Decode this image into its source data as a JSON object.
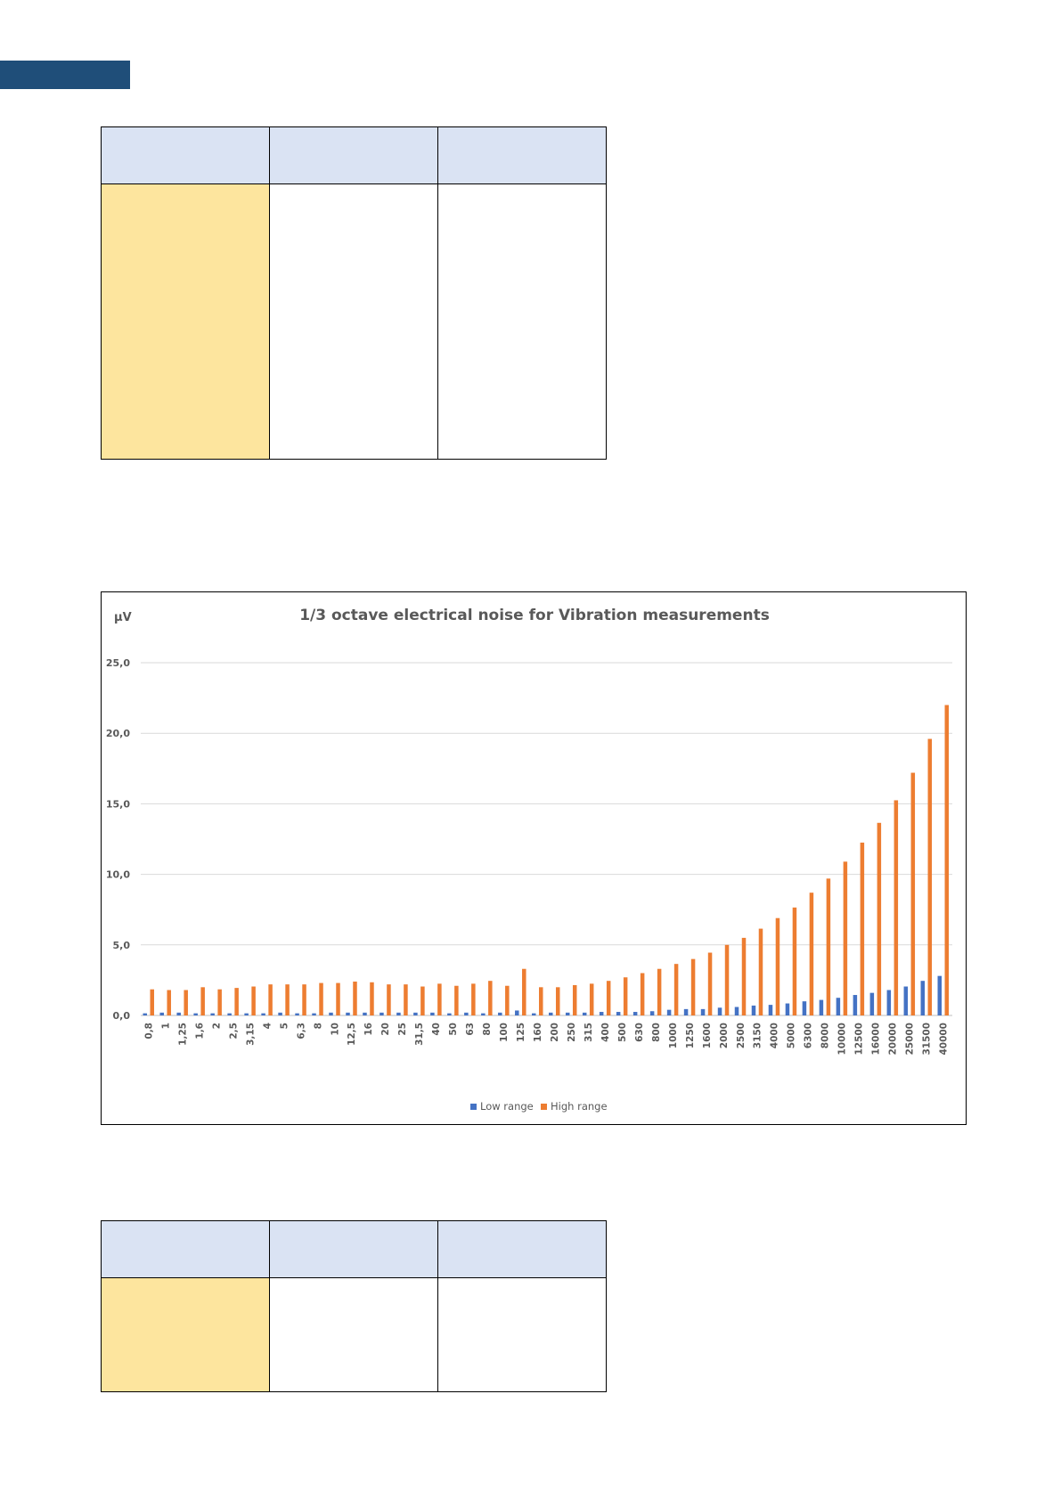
{
  "colors": {
    "header_tab": "#1f4e79",
    "table_header": "#dae3f3",
    "table_key": "#fde59e",
    "low_range": "#4472c4",
    "high_range": "#ed7d31",
    "gridline": "#d9d9d9"
  },
  "chart_data": {
    "type": "bar",
    "title": "1/3 octave electrical noise for Vibration measurements",
    "unit_label": "µV",
    "ylim": [
      0,
      25
    ],
    "y_ticks": [
      "25,0",
      "20,0",
      "15,0",
      "10,0",
      "5,0",
      "0,0"
    ],
    "y_tick_values": [
      25,
      20,
      15,
      10,
      5,
      0
    ],
    "grid": true,
    "legend_position": "bottom",
    "categories": [
      "0,8",
      "1",
      "1,25",
      "1,6",
      "2",
      "2,5",
      "3,15",
      "4",
      "5",
      "6,3",
      "8",
      "10",
      "12,5",
      "16",
      "20",
      "25",
      "31,5",
      "40",
      "50",
      "63",
      "80",
      "100",
      "125",
      "160",
      "200",
      "250",
      "315",
      "400",
      "500",
      "630",
      "800",
      "1000",
      "1250",
      "1600",
      "2000",
      "2500",
      "3150",
      "4000",
      "5000",
      "6300",
      "8000",
      "10000",
      "12500",
      "16000",
      "20000",
      "25000",
      "31500",
      "40000"
    ],
    "series": [
      {
        "name": "Low range",
        "color": "#4472c4",
        "values": [
          0.15,
          0.2,
          0.2,
          0.15,
          0.15,
          0.15,
          0.15,
          0.15,
          0.2,
          0.15,
          0.15,
          0.2,
          0.2,
          0.2,
          0.2,
          0.2,
          0.2,
          0.2,
          0.15,
          0.2,
          0.15,
          0.2,
          0.35,
          0.15,
          0.2,
          0.2,
          0.2,
          0.25,
          0.25,
          0.25,
          0.3,
          0.4,
          0.45,
          0.45,
          0.55,
          0.6,
          0.7,
          0.75,
          0.85,
          1.0,
          1.1,
          1.25,
          1.45,
          1.6,
          1.8,
          2.05,
          2.45,
          2.8
        ]
      },
      {
        "name": "High range",
        "color": "#ed7d31",
        "values": [
          1.85,
          1.8,
          1.8,
          2.0,
          1.85,
          1.95,
          2.05,
          2.2,
          2.2,
          2.2,
          2.3,
          2.3,
          2.4,
          2.35,
          2.2,
          2.2,
          2.05,
          2.25,
          2.1,
          2.25,
          2.45,
          2.1,
          3.3,
          2.0,
          2.0,
          2.15,
          2.25,
          2.45,
          2.7,
          3.0,
          3.3,
          3.65,
          4.0,
          4.45,
          5.0,
          5.5,
          6.15,
          6.9,
          7.65,
          8.7,
          9.7,
          10.9,
          12.25,
          13.65,
          15.25,
          17.2,
          19.6,
          22.0
        ]
      }
    ]
  }
}
